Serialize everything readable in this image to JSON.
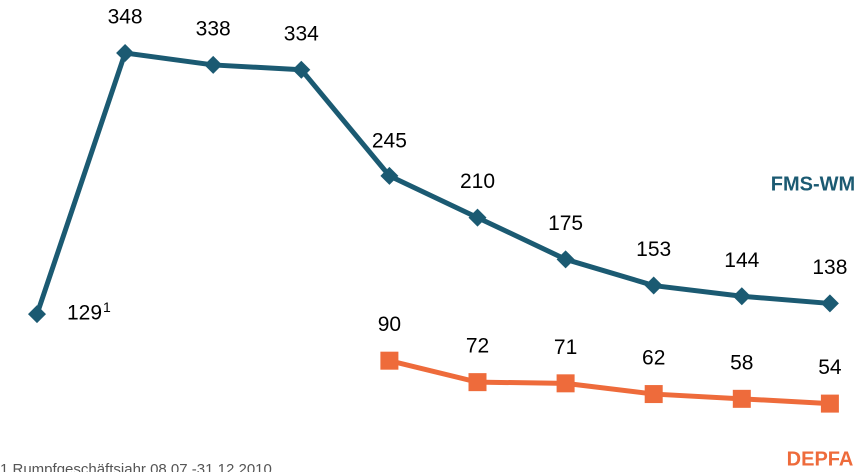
{
  "chart_data": {
    "type": "line",
    "categories": [
      null,
      null,
      null,
      null,
      null,
      null,
      null,
      null,
      null,
      null
    ],
    "series": [
      {
        "name": "FMS-WM",
        "color": "#1b5a72",
        "marker": "diamond",
        "values": [
          129,
          348,
          338,
          334,
          245,
          210,
          175,
          153,
          144,
          138
        ]
      },
      {
        "name": "DEPFA",
        "color": "#ee6b3b",
        "marker": "square",
        "values": [
          null,
          null,
          null,
          null,
          90,
          72,
          71,
          62,
          58,
          54
        ]
      }
    ],
    "footnote_marker": "1",
    "footnote": "1 Rumpfgeschäftsjahr 08.07.-31.12.2010",
    "ylim": [
      0,
      400
    ],
    "grid": false
  }
}
